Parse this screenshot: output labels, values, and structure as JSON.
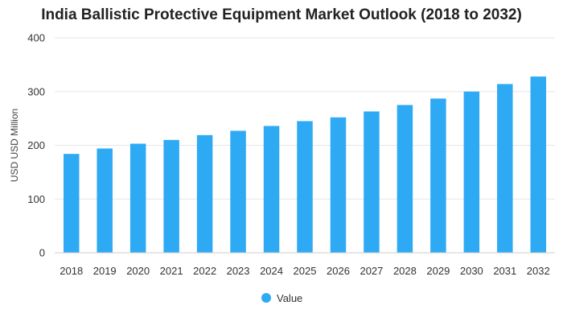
{
  "chart_data": {
    "type": "bar",
    "title": "India Ballistic Protective Equipment Market Outlook (2018 to 2032)",
    "xlabel": "",
    "ylabel": "USD USD Million",
    "ylim": [
      0,
      400
    ],
    "yticks": [
      0,
      100,
      200,
      300,
      400
    ],
    "grid": true,
    "legend_position": "bottom",
    "categories": [
      "2018",
      "2019",
      "2020",
      "2021",
      "2022",
      "2023",
      "2024",
      "2025",
      "2026",
      "2027",
      "2028",
      "2029",
      "2030",
      "2031",
      "2032"
    ],
    "series": [
      {
        "name": "Value",
        "color": "#2eaaf5",
        "values": [
          184,
          194,
          203,
          210,
          219,
          227,
          236,
          245,
          252,
          263,
          275,
          287,
          300,
          314,
          328
        ]
      }
    ]
  }
}
